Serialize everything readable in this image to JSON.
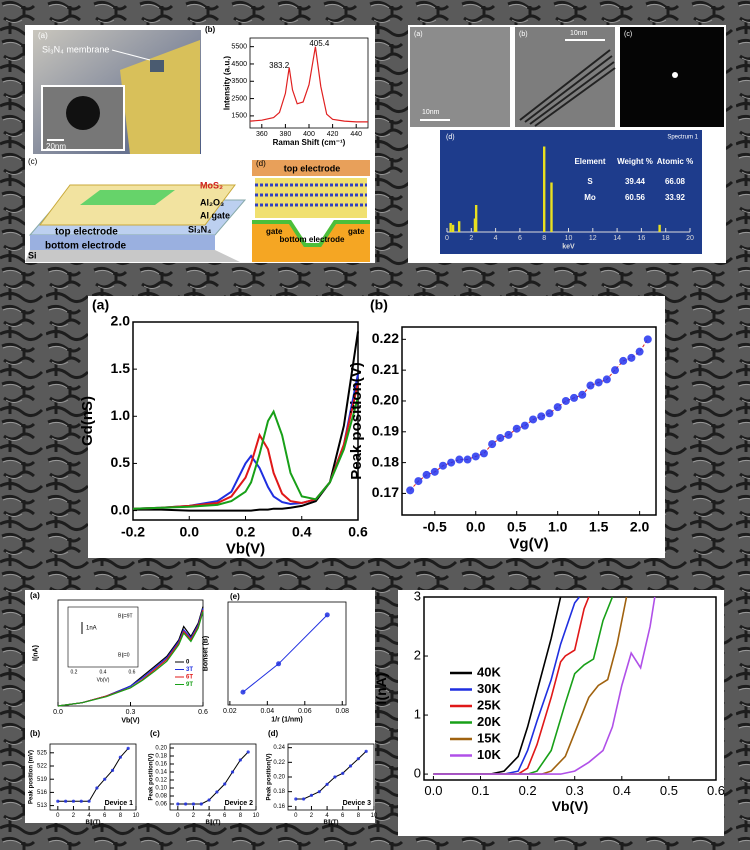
{
  "panels": {
    "top_left": {
      "a_label": "(a)",
      "membrane": "Si₃N₄ membrane",
      "scale": "20nm",
      "c_label": "(c)",
      "mos2": "MoS₂",
      "al2o3": "Al₂O₃",
      "al_gate": "Al gate",
      "si3n4": "Si₃N₄",
      "top_electrode": "top electrode",
      "bottom_electrode": "bottom electrode",
      "si": "Si",
      "d_label": "(d)",
      "d_top_electrode": "top electrode",
      "d_gate_left": "gate",
      "d_bottom_electrode": "bottom electrode",
      "d_gate_right": "gate"
    },
    "top_right": {
      "a_label": "(a)",
      "a_scale": "10nm",
      "b_label": "(b)",
      "b_scale": "10nm",
      "c_label": "(c)",
      "d_label": "(d)",
      "spectrum": "Spectrum 1"
    },
    "eds_table": {
      "header": [
        "Element",
        "Weight %",
        "Atomic %"
      ],
      "rows": [
        [
          "S",
          "39.44",
          "66.08"
        ],
        [
          "Mo",
          "60.56",
          "33.92"
        ]
      ]
    },
    "inset": {
      "scale": "1nA",
      "top": "B∥=9T",
      "bottom": "B∥=0",
      "xticks": [
        "0.2",
        "0.4",
        "0.6"
      ],
      "xlabel": "Vb(V)"
    }
  },
  "chart_data": [
    {
      "type": "line",
      "panel_label": "(b)",
      "xlabel": "Raman Shift (cm⁻¹)",
      "ylabel": "Intensity (a.u.)",
      "x": [
        350,
        360,
        370,
        375,
        380,
        383.2,
        386,
        390,
        395,
        400,
        405.4,
        410,
        415,
        420,
        430,
        440,
        450
      ],
      "series": [
        {
          "color": "#e02020",
          "values": [
            1200,
            1250,
            1400,
            1700,
            2800,
            4300,
            3000,
            2200,
            2300,
            3300,
            5500,
            3200,
            1600,
            1300,
            1200,
            1150,
            1150
          ]
        }
      ],
      "annotations": [
        "383.2",
        "405.4"
      ],
      "xlim": [
        350,
        450
      ],
      "xticks": [
        360,
        380,
        400,
        420,
        440
      ],
      "ylim": [
        800,
        6000
      ],
      "yticks": [
        1500,
        2500,
        3500,
        4500,
        5500
      ]
    },
    {
      "type": "bar",
      "xlabel": "keV",
      "x": [
        0.3,
        0.5,
        1.0,
        2.3,
        2.4,
        8.0,
        8.6,
        17.5
      ],
      "values": [
        10,
        8,
        12,
        15,
        30,
        95,
        55,
        8
      ],
      "color": "#e8e020",
      "xlim": [
        0,
        20
      ],
      "xticks": [
        0,
        2,
        4,
        6,
        8,
        10,
        12,
        14,
        16,
        18,
        20
      ],
      "ylim": [
        0,
        100
      ]
    },
    {
      "type": "line",
      "panel_label": "(a)",
      "xlabel": "Vb(V)",
      "ylabel": "Gd(nS)",
      "x": [
        -0.2,
        -0.1,
        0,
        0.1,
        0.15,
        0.2,
        0.22,
        0.25,
        0.28,
        0.3,
        0.33,
        0.36,
        0.4,
        0.45,
        0.5,
        0.55,
        0.6
      ],
      "series": [
        {
          "color": "#000000",
          "values": [
            0.01,
            0.01,
            0,
            0,
            0,
            0,
            0,
            0.01,
            0.01,
            0.02,
            0.02,
            0.03,
            0.05,
            0.1,
            0.3,
            0.9,
            1.9
          ]
        },
        {
          "color": "#1f2fe0",
          "values": [
            0.02,
            0.03,
            0.05,
            0.1,
            0.2,
            0.5,
            0.58,
            0.45,
            0.25,
            0.15,
            0.09,
            0.07,
            0.08,
            0.12,
            0.3,
            0.7,
            1.45
          ]
        },
        {
          "color": "#e01818",
          "values": [
            0.02,
            0.03,
            0.05,
            0.08,
            0.15,
            0.35,
            0.5,
            0.8,
            0.65,
            0.4,
            0.18,
            0.1,
            0.08,
            0.12,
            0.3,
            0.7,
            1.35
          ]
        },
        {
          "color": "#18a018",
          "values": [
            0.02,
            0.03,
            0.04,
            0.06,
            0.1,
            0.2,
            0.3,
            0.6,
            0.95,
            1.05,
            0.8,
            0.4,
            0.15,
            0.12,
            0.3,
            0.65,
            1.2
          ]
        }
      ],
      "xlim": [
        -0.2,
        0.6
      ],
      "xticks": [
        -0.2,
        {
          "value": 0,
          "label": "0.0"
        },
        0.2,
        0.4,
        0.6
      ],
      "ylim": [
        -0.1,
        2.0
      ],
      "yticks": [
        {
          "value": 0,
          "label": "0.0"
        },
        0.5,
        {
          "value": 1,
          "label": "1.0"
        },
        1.5,
        {
          "value": 2,
          "label": "2.0"
        }
      ]
    },
    {
      "type": "scatter",
      "panel_label": "(b)",
      "xlabel": "Vg(V)",
      "ylabel": "Peak position(V)",
      "x": [
        -0.8,
        -0.7,
        -0.6,
        -0.5,
        -0.4,
        -0.3,
        -0.2,
        -0.1,
        0,
        0.1,
        0.2,
        0.3,
        0.4,
        0.5,
        0.6,
        0.7,
        0.8,
        0.9,
        1.0,
        1.1,
        1.2,
        1.3,
        1.4,
        1.5,
        1.6,
        1.7,
        1.8,
        1.9,
        2.0,
        2.1
      ],
      "series": [
        {
          "color": "#2233ee",
          "fit_color": "#e02020",
          "values": [
            0.171,
            0.174,
            0.176,
            0.177,
            0.179,
            0.18,
            0.181,
            0.181,
            0.182,
            0.183,
            0.186,
            0.188,
            0.189,
            0.191,
            0.192,
            0.194,
            0.195,
            0.196,
            0.198,
            0.2,
            0.201,
            0.202,
            0.205,
            0.206,
            0.207,
            0.21,
            0.213,
            0.214,
            0.216,
            0.22
          ]
        }
      ],
      "xlim": [
        -0.9,
        2.2
      ],
      "xticks": [
        -0.5,
        {
          "value": 0,
          "label": "0.0"
        },
        0.5,
        {
          "value": 1,
          "label": "1.0"
        },
        1.5,
        {
          "value": 2,
          "label": "2.0"
        }
      ],
      "ylim": [
        0.163,
        0.224
      ],
      "yticks": [
        0.17,
        0.18,
        0.19,
        {
          "value": 0.2,
          "label": "0.20"
        },
        0.21,
        0.22
      ]
    },
    {
      "type": "line",
      "panel_label": "(a)",
      "xlabel": "Vb(V)",
      "ylabel": "I(nA)",
      "legend": "lower right",
      "x": [
        0,
        0.1,
        0.2,
        0.3,
        0.35,
        0.4,
        0.45,
        0.5,
        0.52,
        0.55,
        0.58,
        0.6
      ],
      "series": [
        {
          "name": "0",
          "color": "#000000",
          "values": [
            0,
            0.1,
            0.3,
            0.6,
            0.9,
            1.2,
            1.5,
            2.0,
            2.4,
            2.1,
            2.5,
            3.0
          ]
        },
        {
          "name": "3T",
          "color": "#1f2fe0",
          "values": [
            0,
            0.1,
            0.3,
            0.6,
            0.85,
            1.15,
            1.45,
            1.95,
            2.3,
            2.05,
            2.45,
            2.95
          ]
        },
        {
          "name": "6T",
          "color": "#e01818",
          "values": [
            0,
            0.1,
            0.3,
            0.55,
            0.8,
            1.1,
            1.4,
            1.9,
            2.25,
            2.0,
            2.4,
            2.9
          ]
        },
        {
          "name": "9T",
          "color": "#18a018",
          "values": [
            0,
            0.1,
            0.28,
            0.55,
            0.78,
            1.05,
            1.35,
            1.85,
            2.2,
            1.95,
            2.35,
            2.85
          ]
        }
      ],
      "xlim": [
        0,
        0.6
      ],
      "xticks": [
        {
          "value": 0,
          "label": "0.0"
        },
        0.3,
        0.6
      ],
      "ylim": [
        0,
        3.2
      ]
    },
    {
      "type": "scatter",
      "panel_label": "(e)",
      "xlabel": "1/r (1/nm)",
      "ylabel": "Bonset (B)",
      "x": [
        0.027,
        0.046,
        0.072
      ],
      "series": [
        {
          "color": "#1f2fe0",
          "fit_color": "#1f2fe0",
          "values": [
            0.5,
            1.6,
            3.5
          ]
        }
      ],
      "xlim": [
        0.019,
        0.082
      ],
      "xticks": [
        0.02,
        0.04,
        0.06,
        0.08
      ],
      "ylim": [
        0,
        4
      ]
    },
    {
      "type": "scatter",
      "panel_label": "(b)",
      "note": "Device 1",
      "xlabel": "B∥(T)",
      "ylabel": "Peak position (mV)",
      "x": [
        0,
        1,
        2,
        3,
        4,
        5,
        6,
        7,
        8,
        9
      ],
      "series": [
        {
          "color": "#1f2fe0",
          "fit_color": "#000000",
          "values": [
            514,
            514,
            514,
            514,
            514,
            517,
            519,
            521,
            524,
            526
          ]
        }
      ],
      "xlim": [
        -1,
        10
      ],
      "xticks": [
        0,
        2,
        4,
        6,
        8,
        10
      ],
      "ylim": [
        512,
        527
      ],
      "yticks": [
        513,
        516,
        519,
        522,
        525
      ]
    },
    {
      "type": "scatter",
      "panel_label": "(c)",
      "note": "Device 2",
      "xlabel": "B∥(T)",
      "ylabel": "Peak position(V)",
      "x": [
        0,
        1,
        2,
        3,
        4,
        5,
        6,
        7,
        8,
        9
      ],
      "series": [
        {
          "color": "#1f2fe0",
          "fit_color": "#000000",
          "values": [
            0.06,
            0.06,
            0.06,
            0.06,
            0.07,
            0.09,
            0.11,
            0.14,
            0.17,
            0.19
          ]
        }
      ],
      "xlim": [
        -1,
        10
      ],
      "xticks": [
        0,
        2,
        4,
        6,
        8,
        10
      ],
      "ylim": [
        0.045,
        0.21
      ],
      "yticks": [
        0.06,
        0.08,
        {
          "value": 0.1,
          "label": "0.10"
        },
        0.12,
        0.14,
        0.16,
        0.18,
        {
          "value": 0.2,
          "label": "0.20"
        }
      ]
    },
    {
      "type": "scatter",
      "panel_label": "(d)",
      "note": "Device 3",
      "xlabel": "B∥(T)",
      "ylabel": "Peak position(V)",
      "x": [
        0,
        1,
        2,
        3,
        4,
        5,
        6,
        7,
        8,
        9
      ],
      "series": [
        {
          "color": "#1f2fe0",
          "fit_color": "#000000",
          "values": [
            0.17,
            0.17,
            0.175,
            0.18,
            0.19,
            0.2,
            0.205,
            0.215,
            0.225,
            0.235
          ]
        }
      ],
      "xlim": [
        -1,
        10
      ],
      "xticks": [
        0,
        2,
        4,
        6,
        8,
        10
      ],
      "ylim": [
        0.155,
        0.245
      ],
      "yticks": [
        0.16,
        0.18,
        {
          "value": 0.2,
          "label": "0.20"
        },
        0.22,
        0.24
      ]
    },
    {
      "type": "line",
      "xlabel": "Vb(V)",
      "ylabel": "I(nA)",
      "legend": "lower left",
      "series": [
        {
          "name": "40K",
          "color": "#000000",
          "x": [
            0,
            0.12,
            0.15,
            0.18,
            0.2,
            0.22,
            0.25,
            0.27
          ],
          "values": [
            0,
            0,
            0.05,
            0.3,
            0.8,
            1.4,
            2.3,
            3
          ]
        },
        {
          "name": "30K",
          "color": "#1f2fe0",
          "x": [
            0,
            0.15,
            0.18,
            0.2,
            0.22,
            0.25,
            0.27,
            0.3,
            0.31
          ],
          "values": [
            0,
            0,
            0.05,
            0.4,
            0.9,
            1.6,
            2.2,
            2.9,
            3
          ]
        },
        {
          "name": "25K",
          "color": "#e01818",
          "x": [
            0,
            0.18,
            0.2,
            0.22,
            0.25,
            0.27,
            0.28,
            0.3,
            0.32,
            0.33
          ],
          "values": [
            0,
            0,
            0.1,
            0.5,
            1.3,
            1.9,
            2.0,
            2.1,
            2.8,
            3
          ]
        },
        {
          "name": "20K",
          "color": "#18a018",
          "x": [
            0,
            0.2,
            0.22,
            0.25,
            0.28,
            0.3,
            0.32,
            0.34,
            0.36,
            0.38
          ],
          "values": [
            0,
            0,
            0.05,
            0.4,
            1.2,
            1.7,
            1.85,
            1.95,
            2.6,
            3
          ]
        },
        {
          "name": "15K",
          "color": "#a0620f",
          "x": [
            0,
            0.23,
            0.25,
            0.28,
            0.3,
            0.33,
            0.35,
            0.37,
            0.39,
            0.41
          ],
          "values": [
            0,
            0,
            0.05,
            0.3,
            0.7,
            1.3,
            1.5,
            1.6,
            2.2,
            3
          ]
        },
        {
          "name": "10K",
          "color": "#b050e8",
          "x": [
            0,
            0.27,
            0.3,
            0.33,
            0.36,
            0.38,
            0.4,
            0.42,
            0.44,
            0.46,
            0.47
          ],
          "values": [
            0,
            0,
            0.05,
            0.2,
            0.4,
            0.8,
            1.5,
            2.05,
            1.8,
            2.5,
            3
          ]
        }
      ],
      "xlim": [
        -0.02,
        0.6
      ],
      "xticks": [
        {
          "value": 0,
          "label": "0.0"
        },
        0.1,
        0.2,
        0.3,
        0.4,
        0.5,
        0.6
      ],
      "ylim": [
        -0.1,
        3
      ],
      "yticks": [
        0,
        1,
        2,
        3
      ]
    }
  ]
}
